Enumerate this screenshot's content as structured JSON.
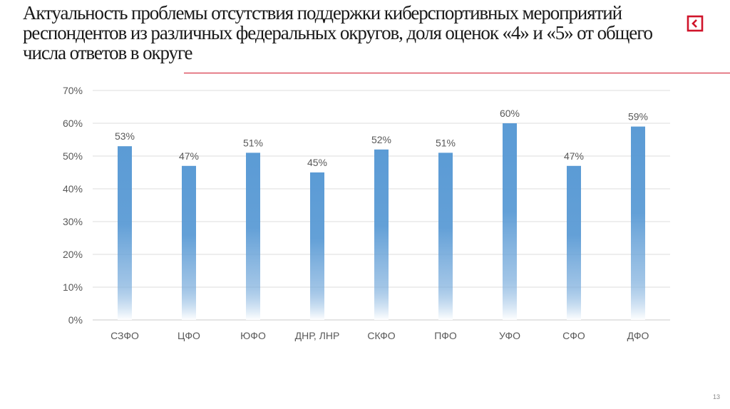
{
  "slide": {
    "title": "Актуальность проблемы отсутствия поддержки киберспортивных мероприятий респондентов из различных федеральных округов, доля оценок «4» и «5» от общего числа ответов в округе",
    "page_number": "13",
    "accent_color": "#d0142a",
    "nav_icon": "back-arrow-icon"
  },
  "chart_data": {
    "type": "bar",
    "title": "",
    "xlabel": "",
    "ylabel": "",
    "categories": [
      "СЗФО",
      "ЦФО",
      "ЮФО",
      "ДНР, ЛНР",
      "СКФО",
      "ПФО",
      "УФО",
      "СФО",
      "ДФО"
    ],
    "values": [
      53,
      47,
      51,
      45,
      52,
      51,
      60,
      47,
      59
    ],
    "value_labels": [
      "53%",
      "47%",
      "51%",
      "45%",
      "52%",
      "51%",
      "60%",
      "47%",
      "59%"
    ],
    "ylim": [
      0,
      70
    ],
    "yticks": [
      0,
      10,
      20,
      30,
      40,
      50,
      60,
      70
    ],
    "ytick_labels": [
      "0%",
      "10%",
      "20%",
      "30%",
      "40%",
      "50%",
      "60%",
      "70%"
    ],
    "grid": true,
    "legend": "none",
    "bar_color": "#5b9bd5",
    "bar_fill": "gradient-fade-to-white-at-bottom"
  }
}
